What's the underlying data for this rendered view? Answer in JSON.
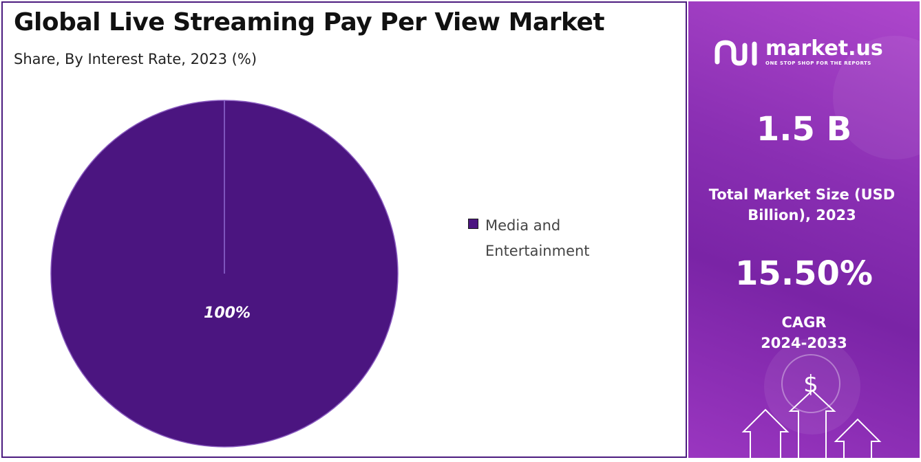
{
  "title": "Global Live Streaming Pay Per View Market",
  "subtitle": "Share, By Interest Rate, 2023 (%)",
  "chart_data": {
    "type": "pie",
    "title": "Global Live Streaming Pay Per View Market",
    "subtitle": "Share, By Interest Rate, 2023 (%)",
    "categories": [
      "Media and Entertainment"
    ],
    "values": [
      100
    ],
    "data_labels": [
      "100%"
    ],
    "colors": [
      "#4b1580"
    ],
    "legend_position": "right"
  },
  "legend": {
    "label": "Media and Entertainment"
  },
  "sidebar": {
    "brand": "market.us",
    "tagline": "ONE STOP SHOP FOR THE REPORTS",
    "market_size_value": "1.5 B",
    "market_size_label": "Total Market Size (USD Billion), 2023",
    "cagr_value": "15.50%",
    "cagr_label": "CAGR",
    "cagr_period": "2024-2033",
    "dollar_symbol": "$"
  },
  "colors": {
    "pie": "#4b1580",
    "frame": "#4b1a7e",
    "sidebar_gradient_start": "#ae47cc",
    "sidebar_gradient_end": "#7a24a6"
  }
}
